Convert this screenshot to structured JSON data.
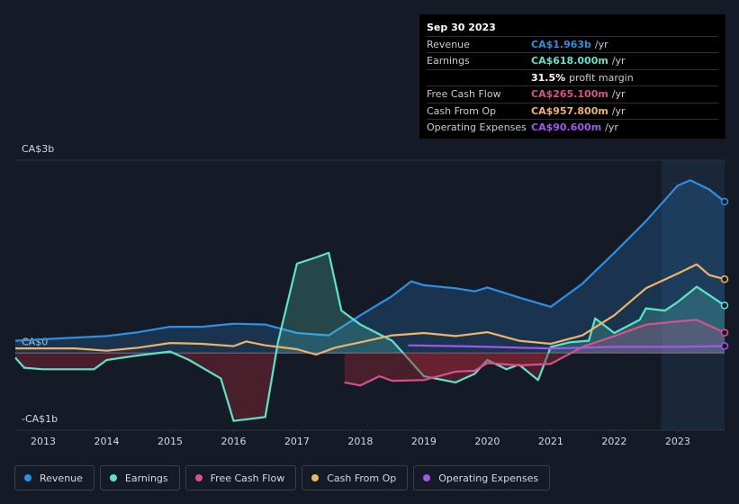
{
  "chart_data": {
    "type": "line",
    "xlim": [
      2012.56,
      2023.74
    ],
    "xticks": [
      2013,
      2014,
      2015,
      2016,
      2017,
      2018,
      2019,
      2020,
      2021,
      2022,
      2023
    ],
    "ylim": [
      -1,
      2.5
    ],
    "yticks": [
      {
        "value": 2.5,
        "label": "CA$3b"
      },
      {
        "value": 0,
        "label": "CA$0"
      },
      {
        "value": -1,
        "label": "-CA$1b"
      }
    ],
    "grid": true,
    "series": [
      {
        "name": "Revenue",
        "color": "#2f8fe3",
        "area": true,
        "x": [
          2012.56,
          2013.5,
          2014,
          2014.5,
          2015,
          2015.5,
          2016,
          2016.5,
          2017,
          2017.5,
          2018,
          2018.5,
          2018.8,
          2019,
          2019.5,
          2019.8,
          2020,
          2020.5,
          2021,
          2021.5,
          2022,
          2022.5,
          2023,
          2023.2,
          2023.5,
          2023.74
        ],
        "values": [
          0.16,
          0.2,
          0.22,
          0.27,
          0.34,
          0.34,
          0.38,
          0.37,
          0.26,
          0.23,
          0.49,
          0.74,
          0.93,
          0.88,
          0.84,
          0.8,
          0.85,
          0.72,
          0.6,
          0.9,
          1.3,
          1.71,
          2.17,
          2.24,
          2.12,
          1.963
        ]
      },
      {
        "name": "Earnings",
        "color": "#5ee3c8",
        "area": true,
        "x": [
          2012.56,
          2012.7,
          2013,
          2013.8,
          2014,
          2014.5,
          2015,
          2015.3,
          2015.8,
          2016,
          2016.5,
          2016.7,
          2017,
          2017.3,
          2017.5,
          2017.7,
          2018,
          2018.5,
          2019,
          2019.5,
          2019.8,
          2020,
          2020.3,
          2020.5,
          2020.8,
          2021,
          2021.3,
          2021.6,
          2021.7,
          2022,
          2022.4,
          2022.5,
          2022.8,
          2023,
          2023.3,
          2023.74
        ],
        "values": [
          -0.06,
          -0.19,
          -0.21,
          -0.21,
          -0.09,
          -0.03,
          0.02,
          -0.09,
          -0.33,
          -0.88,
          -0.83,
          0.14,
          1.16,
          1.24,
          1.3,
          0.55,
          0.37,
          0.16,
          -0.3,
          -0.38,
          -0.27,
          -0.09,
          -0.21,
          -0.15,
          -0.35,
          0.08,
          0.14,
          0.16,
          0.45,
          0.26,
          0.43,
          0.58,
          0.55,
          0.66,
          0.86,
          0.618
        ]
      },
      {
        "name": "Free Cash Flow",
        "color": "#d9508c",
        "area": true,
        "x": [
          2017.75,
          2018,
          2018.3,
          2018.5,
          2019,
          2019.5,
          2019.8,
          2020,
          2020.5,
          2021,
          2021.5,
          2022,
          2022.5,
          2023,
          2023.3,
          2023.74
        ],
        "values": [
          -0.38,
          -0.42,
          -0.3,
          -0.36,
          -0.35,
          -0.24,
          -0.23,
          -0.13,
          -0.16,
          -0.14,
          0.08,
          0.22,
          0.37,
          0.41,
          0.43,
          0.2651
        ]
      },
      {
        "name": "Cash From Op",
        "color": "#f0b468",
        "area": false,
        "x": [
          2012.56,
          2013.5,
          2014,
          2014.5,
          2015,
          2015.5,
          2016,
          2016.2,
          2016.5,
          2017,
          2017.3,
          2017.6,
          2018,
          2018.5,
          2019,
          2019.5,
          2020,
          2020.5,
          2021,
          2021.5,
          2022,
          2022.5,
          2023,
          2023.3,
          2023.5,
          2023.74
        ],
        "values": [
          0.06,
          0.06,
          0.03,
          0.07,
          0.13,
          0.12,
          0.09,
          0.15,
          0.1,
          0.05,
          -0.02,
          0.07,
          0.14,
          0.23,
          0.26,
          0.22,
          0.27,
          0.16,
          0.12,
          0.23,
          0.49,
          0.84,
          1.03,
          1.15,
          1.01,
          0.9578
        ]
      },
      {
        "name": "Operating Expenses",
        "color": "#a356ec",
        "area": false,
        "x": [
          2018.75,
          2019.5,
          2020,
          2020.5,
          2021,
          2021.5,
          2022,
          2023,
          2023.74
        ],
        "values": [
          0.1,
          0.09,
          0.08,
          0.07,
          0.06,
          0.07,
          0.08,
          0.08,
          0.0906
        ]
      }
    ],
    "tooltip": {
      "date": "Sep 30 2023",
      "rows": [
        {
          "label": "Revenue",
          "value": "CA$1.963b",
          "unit": "/yr",
          "color": "#2f8fe3"
        },
        {
          "label": "Earnings",
          "value": "CA$618.000m",
          "unit": "/yr",
          "color": "#5ee3c8"
        },
        {
          "label": null,
          "value": "31.5%",
          "unit": "profit margin",
          "color": "#ffffff"
        },
        {
          "label": "Free Cash Flow",
          "value": "CA$265.100m",
          "unit": "/yr",
          "color": "#d9508c"
        },
        {
          "label": "Cash From Op",
          "value": "CA$957.800m",
          "unit": "/yr",
          "color": "#f0b468"
        },
        {
          "label": "Operating Expenses",
          "value": "CA$90.600m",
          "unit": "/yr",
          "color": "#a356ec"
        }
      ]
    }
  }
}
